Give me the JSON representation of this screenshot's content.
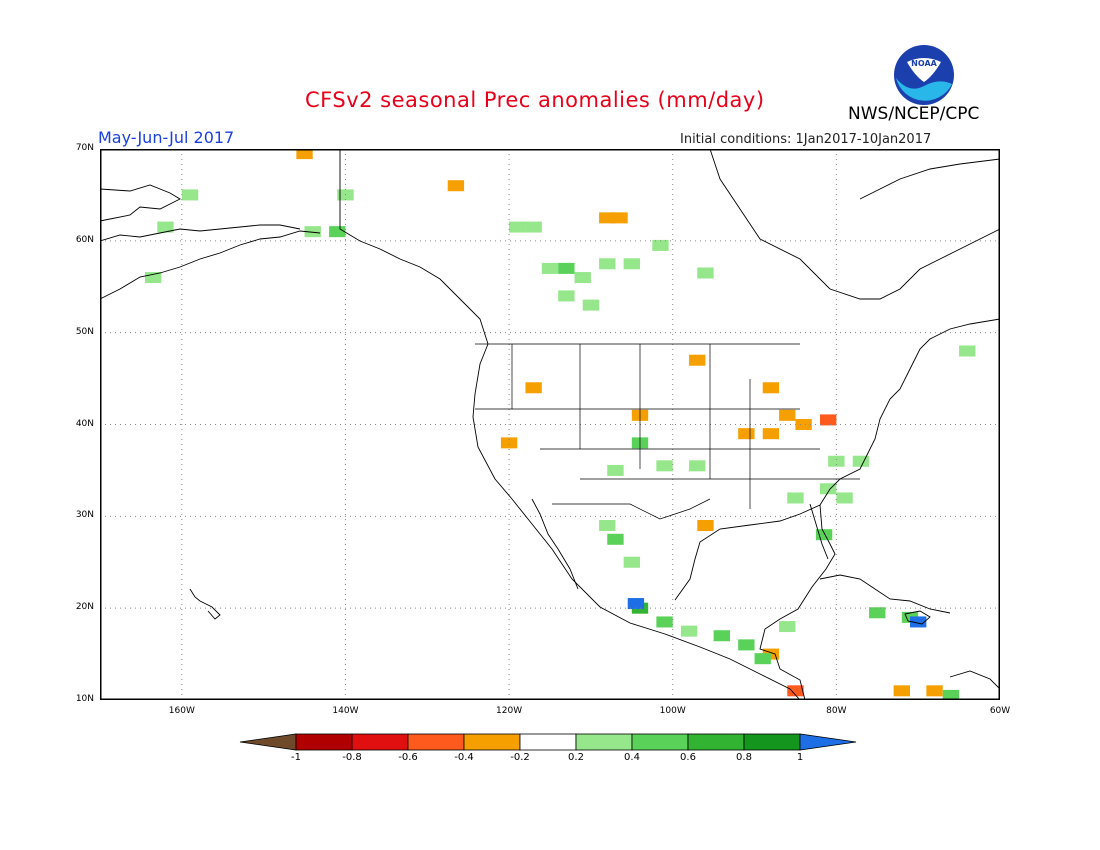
{
  "title": "CFSv2 seasonal Prec anomalies (mm/day)",
  "period": "May-Jun-Jul 2017",
  "initial_conditions": "Initial conditions: 1Jan2017-10Jan2017",
  "agency": "NWS/NCEP/CPC",
  "logo_text": "NOAA",
  "lat_labels": [
    "70N",
    "60N",
    "50N",
    "40N",
    "30N",
    "20N",
    "10N"
  ],
  "lon_labels": [
    "160W",
    "140W",
    "120W",
    "100W",
    "80W",
    "60W"
  ],
  "colorbar": {
    "labels": [
      "-1",
      "-0.8",
      "-0.6",
      "-0.4",
      "-0.2",
      "0.2",
      "0.4",
      "0.6",
      "0.8",
      "1"
    ],
    "colors": [
      "#6e4a2b",
      "#b00000",
      "#e01010",
      "#ff5a1e",
      "#f5a000",
      "#ffffff",
      "#96e68c",
      "#5ad25a",
      "#32b432",
      "#14961e",
      "#1e6ee6"
    ]
  },
  "map_extent": {
    "lon": [
      -170,
      -60
    ],
    "lat": [
      10,
      70
    ]
  },
  "anomaly_cells": [
    {
      "lon": -145,
      "lat": 69.5,
      "v": -0.3
    },
    {
      "lon": -126.5,
      "lat": 66,
      "v": -0.3
    },
    {
      "lon": -108,
      "lat": 62.5,
      "v": -0.3
    },
    {
      "lon": -106.5,
      "lat": 62.5,
      "v": -0.3
    },
    {
      "lon": -159,
      "lat": 65,
      "v": 0.3
    },
    {
      "lon": -162,
      "lat": 61.5,
      "v": 0.3
    },
    {
      "lon": -140,
      "lat": 65,
      "v": 0.3
    },
    {
      "lon": -141,
      "lat": 61,
      "v": 0.4
    },
    {
      "lon": -144,
      "lat": 61,
      "v": 0.3
    },
    {
      "lon": -119,
      "lat": 61.5,
      "v": 0.3
    },
    {
      "lon": -117,
      "lat": 61.5,
      "v": 0.3
    },
    {
      "lon": -115,
      "lat": 57,
      "v": 0.3
    },
    {
      "lon": -113,
      "lat": 57,
      "v": 0.4
    },
    {
      "lon": -111,
      "lat": 56,
      "v": 0.3
    },
    {
      "lon": -113,
      "lat": 54,
      "v": 0.3
    },
    {
      "lon": -110,
      "lat": 53,
      "v": 0.3
    },
    {
      "lon": -108,
      "lat": 57.5,
      "v": 0.3
    },
    {
      "lon": -105,
      "lat": 57.5,
      "v": 0.3
    },
    {
      "lon": -101.5,
      "lat": 59.5,
      "v": 0.3
    },
    {
      "lon": -96,
      "lat": 56.5,
      "v": 0.3
    },
    {
      "lon": -163.5,
      "lat": 56,
      "v": 0.3
    },
    {
      "lon": -117,
      "lat": 44,
      "v": -0.4
    },
    {
      "lon": -120,
      "lat": 38,
      "v": -0.3
    },
    {
      "lon": -104,
      "lat": 41,
      "v": -0.4
    },
    {
      "lon": -97,
      "lat": 47,
      "v": -0.3
    },
    {
      "lon": -88,
      "lat": 44,
      "v": -0.4
    },
    {
      "lon": -86,
      "lat": 41,
      "v": -0.4
    },
    {
      "lon": -84,
      "lat": 40,
      "v": -0.4
    },
    {
      "lon": -81,
      "lat": 40.5,
      "v": -0.5
    },
    {
      "lon": -88,
      "lat": 39,
      "v": -0.4
    },
    {
      "lon": -91,
      "lat": 39,
      "v": -0.3
    },
    {
      "lon": -96,
      "lat": 29,
      "v": -0.3
    },
    {
      "lon": -88,
      "lat": 15,
      "v": -0.3
    },
    {
      "lon": -85,
      "lat": 11,
      "v": -0.6
    },
    {
      "lon": -72,
      "lat": 11,
      "v": -0.3
    },
    {
      "lon": -68,
      "lat": 11,
      "v": -0.3
    },
    {
      "lon": -104,
      "lat": 38,
      "v": 0.4
    },
    {
      "lon": -101,
      "lat": 35.5,
      "v": 0.3
    },
    {
      "lon": -97,
      "lat": 35.5,
      "v": 0.3
    },
    {
      "lon": -107,
      "lat": 35,
      "v": 0.3
    },
    {
      "lon": -108,
      "lat": 29,
      "v": 0.3
    },
    {
      "lon": -107,
      "lat": 27.5,
      "v": 0.5
    },
    {
      "lon": -105,
      "lat": 25,
      "v": 0.3
    },
    {
      "lon": -104,
      "lat": 20,
      "v": 0.6
    },
    {
      "lon": -104.5,
      "lat": 20.5,
      "v": 1.0
    },
    {
      "lon": -101,
      "lat": 18.5,
      "v": 0.4
    },
    {
      "lon": -98,
      "lat": 17.5,
      "v": 0.3
    },
    {
      "lon": -94,
      "lat": 17,
      "v": 0.4
    },
    {
      "lon": -91,
      "lat": 16,
      "v": 0.4
    },
    {
      "lon": -89,
      "lat": 14.5,
      "v": 0.5
    },
    {
      "lon": -86,
      "lat": 18,
      "v": 0.3
    },
    {
      "lon": -85,
      "lat": 32,
      "v": 0.3
    },
    {
      "lon": -81.5,
      "lat": 28,
      "v": 0.4
    },
    {
      "lon": -81,
      "lat": 33,
      "v": 0.3
    },
    {
      "lon": -80,
      "lat": 36,
      "v": 0.3
    },
    {
      "lon": -77,
      "lat": 36,
      "v": 0.3
    },
    {
      "lon": -79,
      "lat": 32,
      "v": 0.3
    },
    {
      "lon": -75,
      "lat": 19.5,
      "v": 0.5
    },
    {
      "lon": -71,
      "lat": 19,
      "v": 0.5
    },
    {
      "lon": -70,
      "lat": 18.5,
      "v": 1.0
    },
    {
      "lon": -66,
      "lat": 10.5,
      "v": 0.4
    },
    {
      "lon": -64,
      "lat": 48,
      "v": 0.3
    }
  ]
}
